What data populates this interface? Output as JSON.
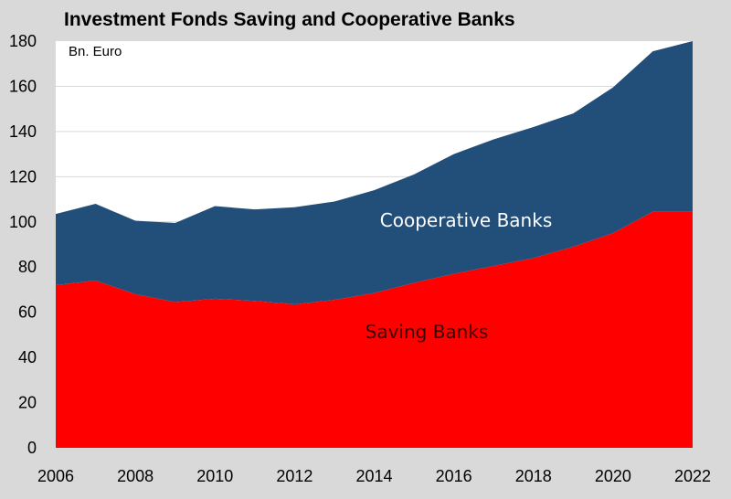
{
  "chart_data": {
    "type": "area",
    "stacked": true,
    "title": "Investment Fonds Saving and Cooperative Banks",
    "unit_label": "Bn. Euro",
    "x": [
      2006,
      2007,
      2008,
      2009,
      2010,
      2011,
      2012,
      2013,
      2014,
      2015,
      2016,
      2017,
      2018,
      2019,
      2020,
      2021,
      2022
    ],
    "series": [
      {
        "name": "Saving Banks",
        "color": "#ff0000",
        "values": [
          72,
          74,
          68,
          64.5,
          66,
          65,
          63.5,
          65.5,
          68.5,
          73,
          77,
          80.5,
          84,
          89,
          95,
          104.5,
          104.5
        ]
      },
      {
        "name": "Cooperative Banks",
        "color": "#224e7a",
        "values": [
          31.5,
          34,
          32.5,
          35,
          41,
          40.5,
          43,
          43.5,
          45.5,
          48,
          53,
          56,
          58,
          59,
          64.5,
          71,
          75.5
        ]
      }
    ],
    "xlim": [
      2006,
      2022
    ],
    "ylim": [
      0,
      180
    ],
    "x_ticks": [
      2006,
      2008,
      2010,
      2012,
      2014,
      2016,
      2018,
      2020,
      2022
    ],
    "y_ticks": [
      0,
      20,
      40,
      60,
      80,
      100,
      120,
      140,
      160,
      180
    ],
    "grid": true,
    "legend": "inline labels"
  }
}
